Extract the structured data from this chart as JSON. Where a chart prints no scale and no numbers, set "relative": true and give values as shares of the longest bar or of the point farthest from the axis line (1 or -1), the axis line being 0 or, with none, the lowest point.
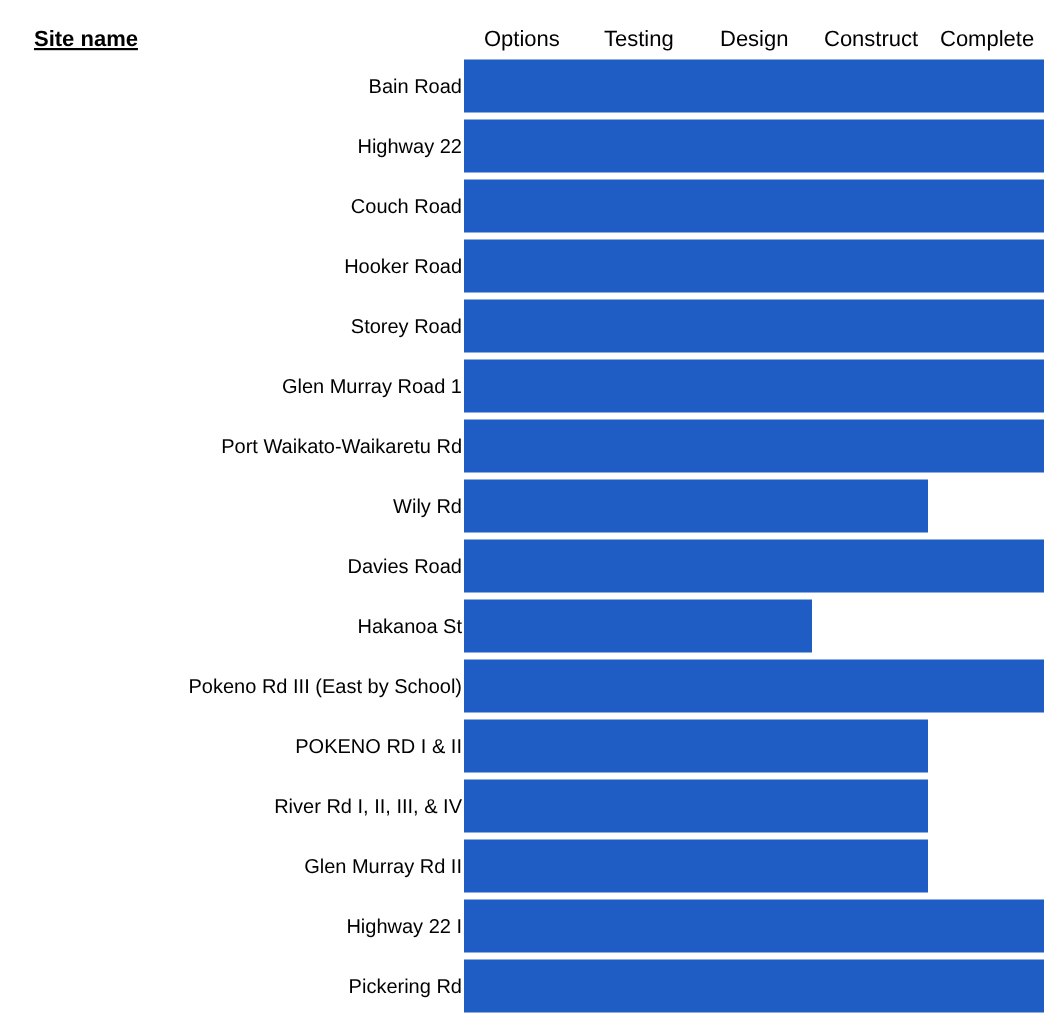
{
  "chart_data": {
    "type": "bar",
    "orientation": "horizontal",
    "relative": true,
    "ylabel": "Site name",
    "categories": [
      "Bain Road",
      "Highway 22",
      "Couch Road",
      "Hooker Road",
      "Storey Road",
      "Glen Murray Road 1",
      "Port Waikato-Waikaretu Rd",
      "Wily Rd",
      "Davies Road",
      "Hakanoa St",
      "Pokeno Rd III (East by School)",
      "POKENO RD I & II",
      "River Rd I, II, III, & IV",
      "Glen Murray Rd II",
      "Highway 22 I",
      "Pickering Rd"
    ],
    "values": [
      1,
      1,
      1,
      1,
      1,
      1,
      1,
      0.8,
      1,
      0.6,
      1,
      0.8,
      0.8,
      0.8,
      1,
      1
    ],
    "color": "#1f5cc4",
    "annotations": [
      "Options",
      "Testing",
      "Design",
      "Construct",
      "Complete"
    ]
  }
}
